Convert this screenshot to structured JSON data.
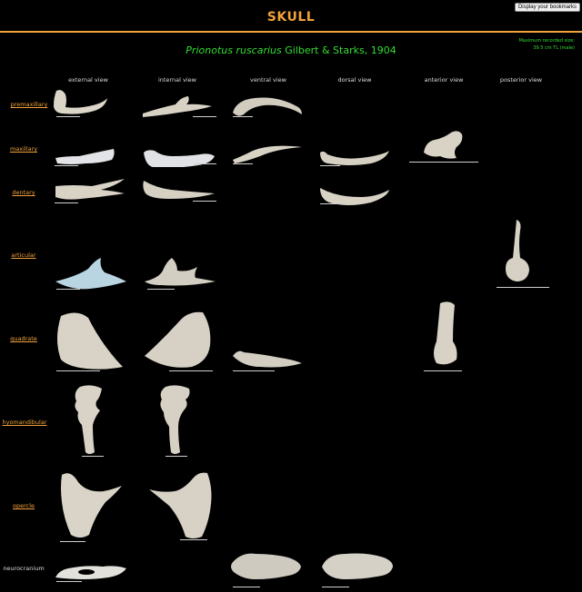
{
  "header": {
    "bookmark_button": "Display your bookmarks",
    "title": "SKULL",
    "max_size_line1": "Maximum recorded size:",
    "max_size_line2": "39.5 cm TL (male)",
    "species_italic": "Prionotus ruscarius",
    "species_author": " Gilbert & Starks, 1904"
  },
  "columns": [
    "external view",
    "internal view",
    "ventral view",
    "dorsal view",
    "anterior view",
    "posterior view"
  ],
  "rows": [
    {
      "label": "premaxillary",
      "link": true
    },
    {
      "label": "maxillary",
      "link": true
    },
    {
      "label": "dentary",
      "link": true
    },
    {
      "label": "articular",
      "link": true
    },
    {
      "label": "quadrate",
      "link": true
    },
    {
      "label": "hyomandibular",
      "link": true
    },
    {
      "label": "opercle",
      "link": true
    },
    {
      "label": "neurocranium",
      "link": false
    }
  ],
  "colors": {
    "accent": "#f2a23a",
    "species": "#33dd33",
    "bone": "#d9d4c8"
  }
}
